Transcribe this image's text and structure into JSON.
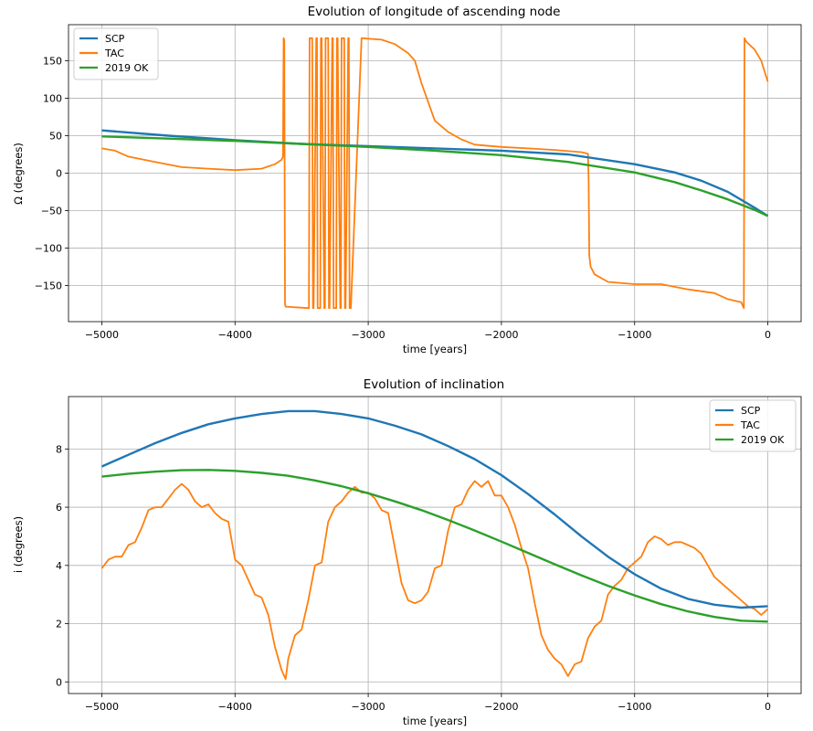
{
  "colors": {
    "SCP": "#1f77b4",
    "TAC": "#ff7f0e",
    "2019 OK": "#2ca02c",
    "grid": "#b0b0b0"
  },
  "chart_data": [
    {
      "type": "line",
      "title": "Evolution of longitude of ascending node",
      "xlabel": "time [years]",
      "ylabel": "Ω (degrees)",
      "xlim": [
        -5250,
        250
      ],
      "ylim": [
        -198,
        198
      ],
      "xticks": [
        -5000,
        -4000,
        -3000,
        -2000,
        -1000,
        0
      ],
      "xtick_labels": [
        "−5000",
        "−4000",
        "−3000",
        "−2000",
        "−1000",
        "0"
      ],
      "yticks": [
        -150,
        -100,
        -50,
        0,
        50,
        100,
        150
      ],
      "ytick_labels": [
        "−150",
        "−100",
        "−50",
        "0",
        "50",
        "100",
        "150"
      ],
      "grid": true,
      "legend": "upper left",
      "series": [
        {
          "name": "SCP",
          "x": [
            -5000,
            -4500,
            -4000,
            -3500,
            -3000,
            -2500,
            -2000,
            -1500,
            -1000,
            -700,
            -500,
            -300,
            -100,
            0
          ],
          "y": [
            57,
            50,
            44,
            39,
            36,
            33,
            30,
            25,
            12,
            1,
            -10,
            -25,
            -46,
            -57
          ]
        },
        {
          "name": "TAC",
          "x": [
            -5000,
            -4900,
            -4800,
            -4600,
            -4400,
            -4200,
            -4000,
            -3800,
            -3700,
            -3650,
            -3640,
            -3635,
            -3630,
            -3625,
            -3620,
            -3450,
            -3445,
            -3440,
            -3420,
            -3415,
            -3410,
            -3390,
            -3385,
            -3380,
            -3360,
            -3355,
            -3350,
            -3330,
            -3325,
            -3320,
            -3300,
            -3295,
            -3290,
            -3270,
            -3265,
            -3260,
            -3240,
            -3235,
            -3230,
            -3210,
            -3205,
            -3200,
            -3180,
            -3175,
            -3170,
            -3150,
            -3145,
            -3140,
            -3130,
            -3050,
            -2900,
            -2800,
            -2700,
            -2650,
            -2600,
            -2500,
            -2400,
            -2300,
            -2200,
            -2000,
            -1800,
            -1600,
            -1400,
            -1350,
            -1345,
            -1340,
            -1330,
            -1300,
            -1200,
            -1000,
            -800,
            -600,
            -400,
            -300,
            -200,
            -180,
            -175,
            -170,
            -160,
            -100,
            -50,
            0
          ],
          "y": [
            33,
            30,
            22,
            15,
            8,
            6,
            4,
            6,
            12,
            18,
            22,
            180,
            178,
            -175,
            -178,
            -180,
            -180,
            180,
            180,
            -180,
            -180,
            180,
            180,
            -180,
            -180,
            180,
            180,
            -180,
            -180,
            180,
            180,
            -180,
            -180,
            180,
            180,
            -180,
            -180,
            180,
            180,
            -180,
            -180,
            180,
            180,
            -180,
            -180,
            180,
            180,
            -180,
            -180,
            180,
            178,
            172,
            160,
            150,
            120,
            70,
            55,
            45,
            38,
            35,
            33,
            31,
            28,
            26,
            -10,
            -110,
            -125,
            -135,
            -145,
            -148,
            -148,
            -155,
            -160,
            -168,
            -172,
            -180,
            180,
            178,
            175,
            165,
            150,
            122
          ]
        },
        {
          "name": "2019 OK",
          "x": [
            -5000,
            -4500,
            -4000,
            -3500,
            -3000,
            -2500,
            -2000,
            -1500,
            -1000,
            -700,
            -500,
            -300,
            -100,
            0
          ],
          "y": [
            49,
            46,
            43,
            39,
            35,
            30,
            24,
            15,
            1,
            -12,
            -23,
            -35,
            -49,
            -57
          ]
        }
      ]
    },
    {
      "type": "line",
      "title": "Evolution of inclination",
      "xlabel": "time [years]",
      "ylabel": "i (degrees)",
      "xlim": [
        -5250,
        250
      ],
      "ylim": [
        -0.4,
        9.8
      ],
      "xticks": [
        -5000,
        -4000,
        -3000,
        -2000,
        -1000,
        0
      ],
      "xtick_labels": [
        "−5000",
        "−4000",
        "−3000",
        "−2000",
        "−1000",
        "0"
      ],
      "yticks": [
        0,
        2,
        4,
        6,
        8
      ],
      "ytick_labels": [
        "0",
        "2",
        "4",
        "6",
        "8"
      ],
      "grid": true,
      "legend": "upper right",
      "series": [
        {
          "name": "SCP",
          "x": [
            -5000,
            -4800,
            -4600,
            -4400,
            -4200,
            -4000,
            -3800,
            -3600,
            -3400,
            -3200,
            -3000,
            -2800,
            -2600,
            -2400,
            -2200,
            -2000,
            -1800,
            -1600,
            -1400,
            -1200,
            -1000,
            -800,
            -600,
            -400,
            -200,
            0
          ],
          "y": [
            7.4,
            7.8,
            8.2,
            8.55,
            8.85,
            9.05,
            9.2,
            9.3,
            9.3,
            9.2,
            9.05,
            8.8,
            8.5,
            8.1,
            7.65,
            7.1,
            6.45,
            5.75,
            5.0,
            4.3,
            3.7,
            3.2,
            2.85,
            2.65,
            2.55,
            2.6
          ]
        },
        {
          "name": "TAC",
          "x": [
            -5000,
            -4950,
            -4900,
            -4850,
            -4800,
            -4750,
            -4700,
            -4650,
            -4600,
            -4550,
            -4500,
            -4450,
            -4400,
            -4350,
            -4300,
            -4250,
            -4200,
            -4150,
            -4100,
            -4050,
            -4000,
            -3950,
            -3900,
            -3850,
            -3800,
            -3750,
            -3700,
            -3650,
            -3620,
            -3600,
            -3550,
            -3500,
            -3450,
            -3400,
            -3350,
            -3300,
            -3250,
            -3200,
            -3150,
            -3100,
            -3050,
            -3000,
            -2950,
            -2900,
            -2850,
            -2800,
            -2750,
            -2700,
            -2650,
            -2600,
            -2550,
            -2500,
            -2450,
            -2400,
            -2350,
            -2300,
            -2250,
            -2200,
            -2150,
            -2100,
            -2050,
            -2000,
            -1950,
            -1900,
            -1850,
            -1800,
            -1750,
            -1700,
            -1650,
            -1600,
            -1550,
            -1500,
            -1450,
            -1400,
            -1350,
            -1300,
            -1250,
            -1200,
            -1150,
            -1100,
            -1050,
            -1000,
            -950,
            -900,
            -850,
            -800,
            -750,
            -700,
            -650,
            -600,
            -550,
            -500,
            -450,
            -400,
            -350,
            -300,
            -250,
            -200,
            -150,
            -100,
            -50,
            0
          ],
          "y": [
            3.9,
            4.2,
            4.3,
            4.3,
            4.7,
            4.8,
            5.3,
            5.9,
            6.0,
            6.0,
            6.3,
            6.6,
            6.8,
            6.6,
            6.2,
            6.0,
            6.1,
            5.8,
            5.6,
            5.5,
            4.2,
            4.0,
            3.5,
            3.0,
            2.9,
            2.3,
            1.2,
            0.4,
            0.1,
            0.8,
            1.6,
            1.8,
            2.8,
            4.0,
            4.1,
            5.5,
            6.0,
            6.2,
            6.5,
            6.7,
            6.5,
            6.5,
            6.3,
            5.9,
            5.8,
            4.6,
            3.4,
            2.8,
            2.7,
            2.8,
            3.1,
            3.9,
            4.0,
            5.2,
            6.0,
            6.1,
            6.6,
            6.9,
            6.7,
            6.9,
            6.4,
            6.4,
            6.0,
            5.4,
            4.6,
            3.9,
            2.7,
            1.6,
            1.1,
            0.8,
            0.6,
            0.2,
            0.6,
            0.7,
            1.5,
            1.9,
            2.1,
            3.0,
            3.3,
            3.5,
            3.9,
            4.1,
            4.3,
            4.8,
            5.0,
            4.9,
            4.7,
            4.8,
            4.8,
            4.7,
            4.6,
            4.4,
            4.0,
            3.6,
            3.4,
            3.2,
            3.0,
            2.8,
            2.6,
            2.5,
            2.3,
            2.5
          ]
        },
        {
          "name": "2019 OK",
          "x": [
            -5000,
            -4800,
            -4600,
            -4400,
            -4200,
            -4000,
            -3800,
            -3600,
            -3400,
            -3200,
            -3000,
            -2800,
            -2600,
            -2400,
            -2200,
            -2000,
            -1800,
            -1600,
            -1400,
            -1200,
            -1000,
            -800,
            -600,
            -400,
            -200,
            0
          ],
          "y": [
            7.05,
            7.15,
            7.22,
            7.27,
            7.28,
            7.25,
            7.18,
            7.08,
            6.92,
            6.72,
            6.48,
            6.2,
            5.9,
            5.56,
            5.2,
            4.82,
            4.43,
            4.04,
            3.66,
            3.3,
            2.97,
            2.67,
            2.42,
            2.23,
            2.1,
            2.07
          ]
        }
      ]
    }
  ]
}
